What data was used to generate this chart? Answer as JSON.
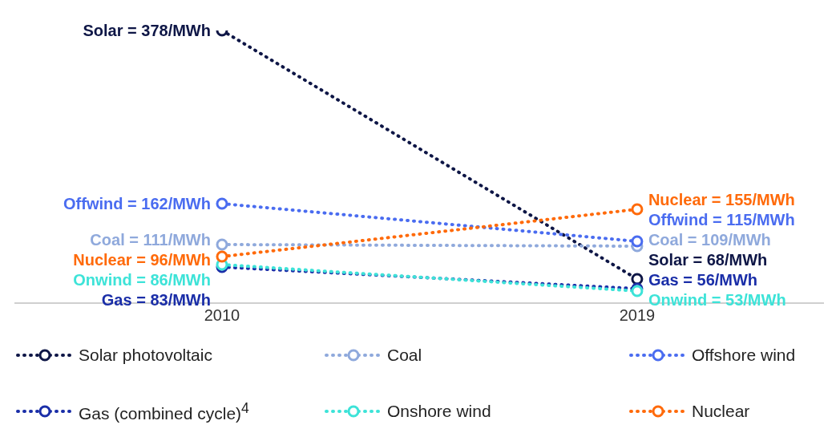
{
  "chart_data": {
    "type": "line",
    "categories": [
      "2010",
      "2019"
    ],
    "marker": "circle",
    "line_style": "dotted",
    "legend": "bottom",
    "series": [
      {
        "name": "Solar photovoltaic",
        "color": "#0e1646",
        "values": [
          378,
          68
        ],
        "value_labels": [
          "Solar = 378/MWh",
          "Solar = 68/MWh"
        ]
      },
      {
        "name": "Coal",
        "color": "#8fa9dc",
        "values": [
          111,
          109
        ],
        "value_labels": [
          "Coal = 111/MWh",
          "Coal = 109/MWh"
        ]
      },
      {
        "name": "Offshore wind",
        "color": "#4a6cf0",
        "values": [
          162,
          115
        ],
        "value_labels": [
          "Offwind = 162/MWh",
          "Offwind = 115/MWh"
        ]
      },
      {
        "name": "Gas (combined cycle)$^{4}$",
        "color": "#1a2ea8",
        "values": [
          83,
          56
        ],
        "value_labels": [
          "Gas = 83/MWh",
          "Gas = 56/MWh"
        ]
      },
      {
        "name": "Onshore wind",
        "color": "#3de3d8",
        "values": [
          86,
          53
        ],
        "value_labels": [
          "Onwind = 86/MWh",
          "Onwind = 53/MWh"
        ]
      },
      {
        "name": "Nuclear",
        "color": "#ff6a0a",
        "values": [
          96,
          155
        ],
        "value_labels": [
          "Nuclear = 96/MWh",
          "Nuclear = 155/MWh"
        ]
      }
    ]
  }
}
